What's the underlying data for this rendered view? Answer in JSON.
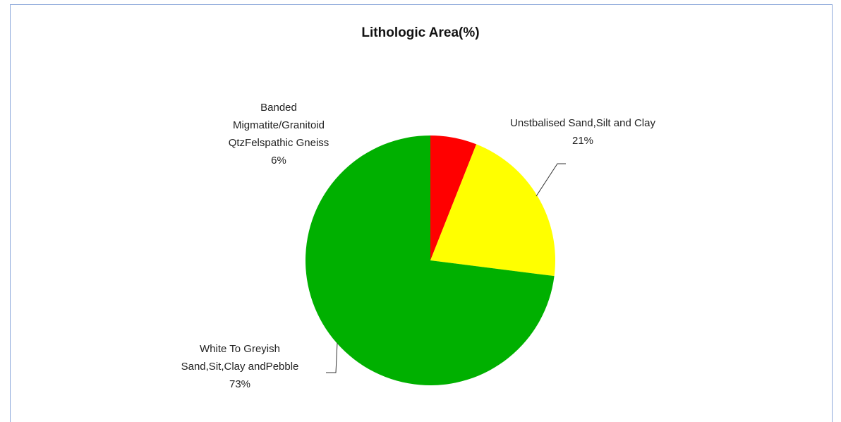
{
  "chart_data": {
    "type": "pie",
    "title": "Lithologic Area(%)",
    "categories": [
      "Banded Migmatite/Granitoid QtzFelspathic Gneiss",
      "Unstbalised Sand,Silt and Clay",
      "White To Greyish Sand,Sit,Clay andPebble"
    ],
    "values": [
      6,
      21,
      73
    ],
    "value_labels": [
      "6%",
      "21%",
      "73%"
    ],
    "colors": [
      "#ff0000",
      "#ffff00",
      "#00b000"
    ]
  }
}
